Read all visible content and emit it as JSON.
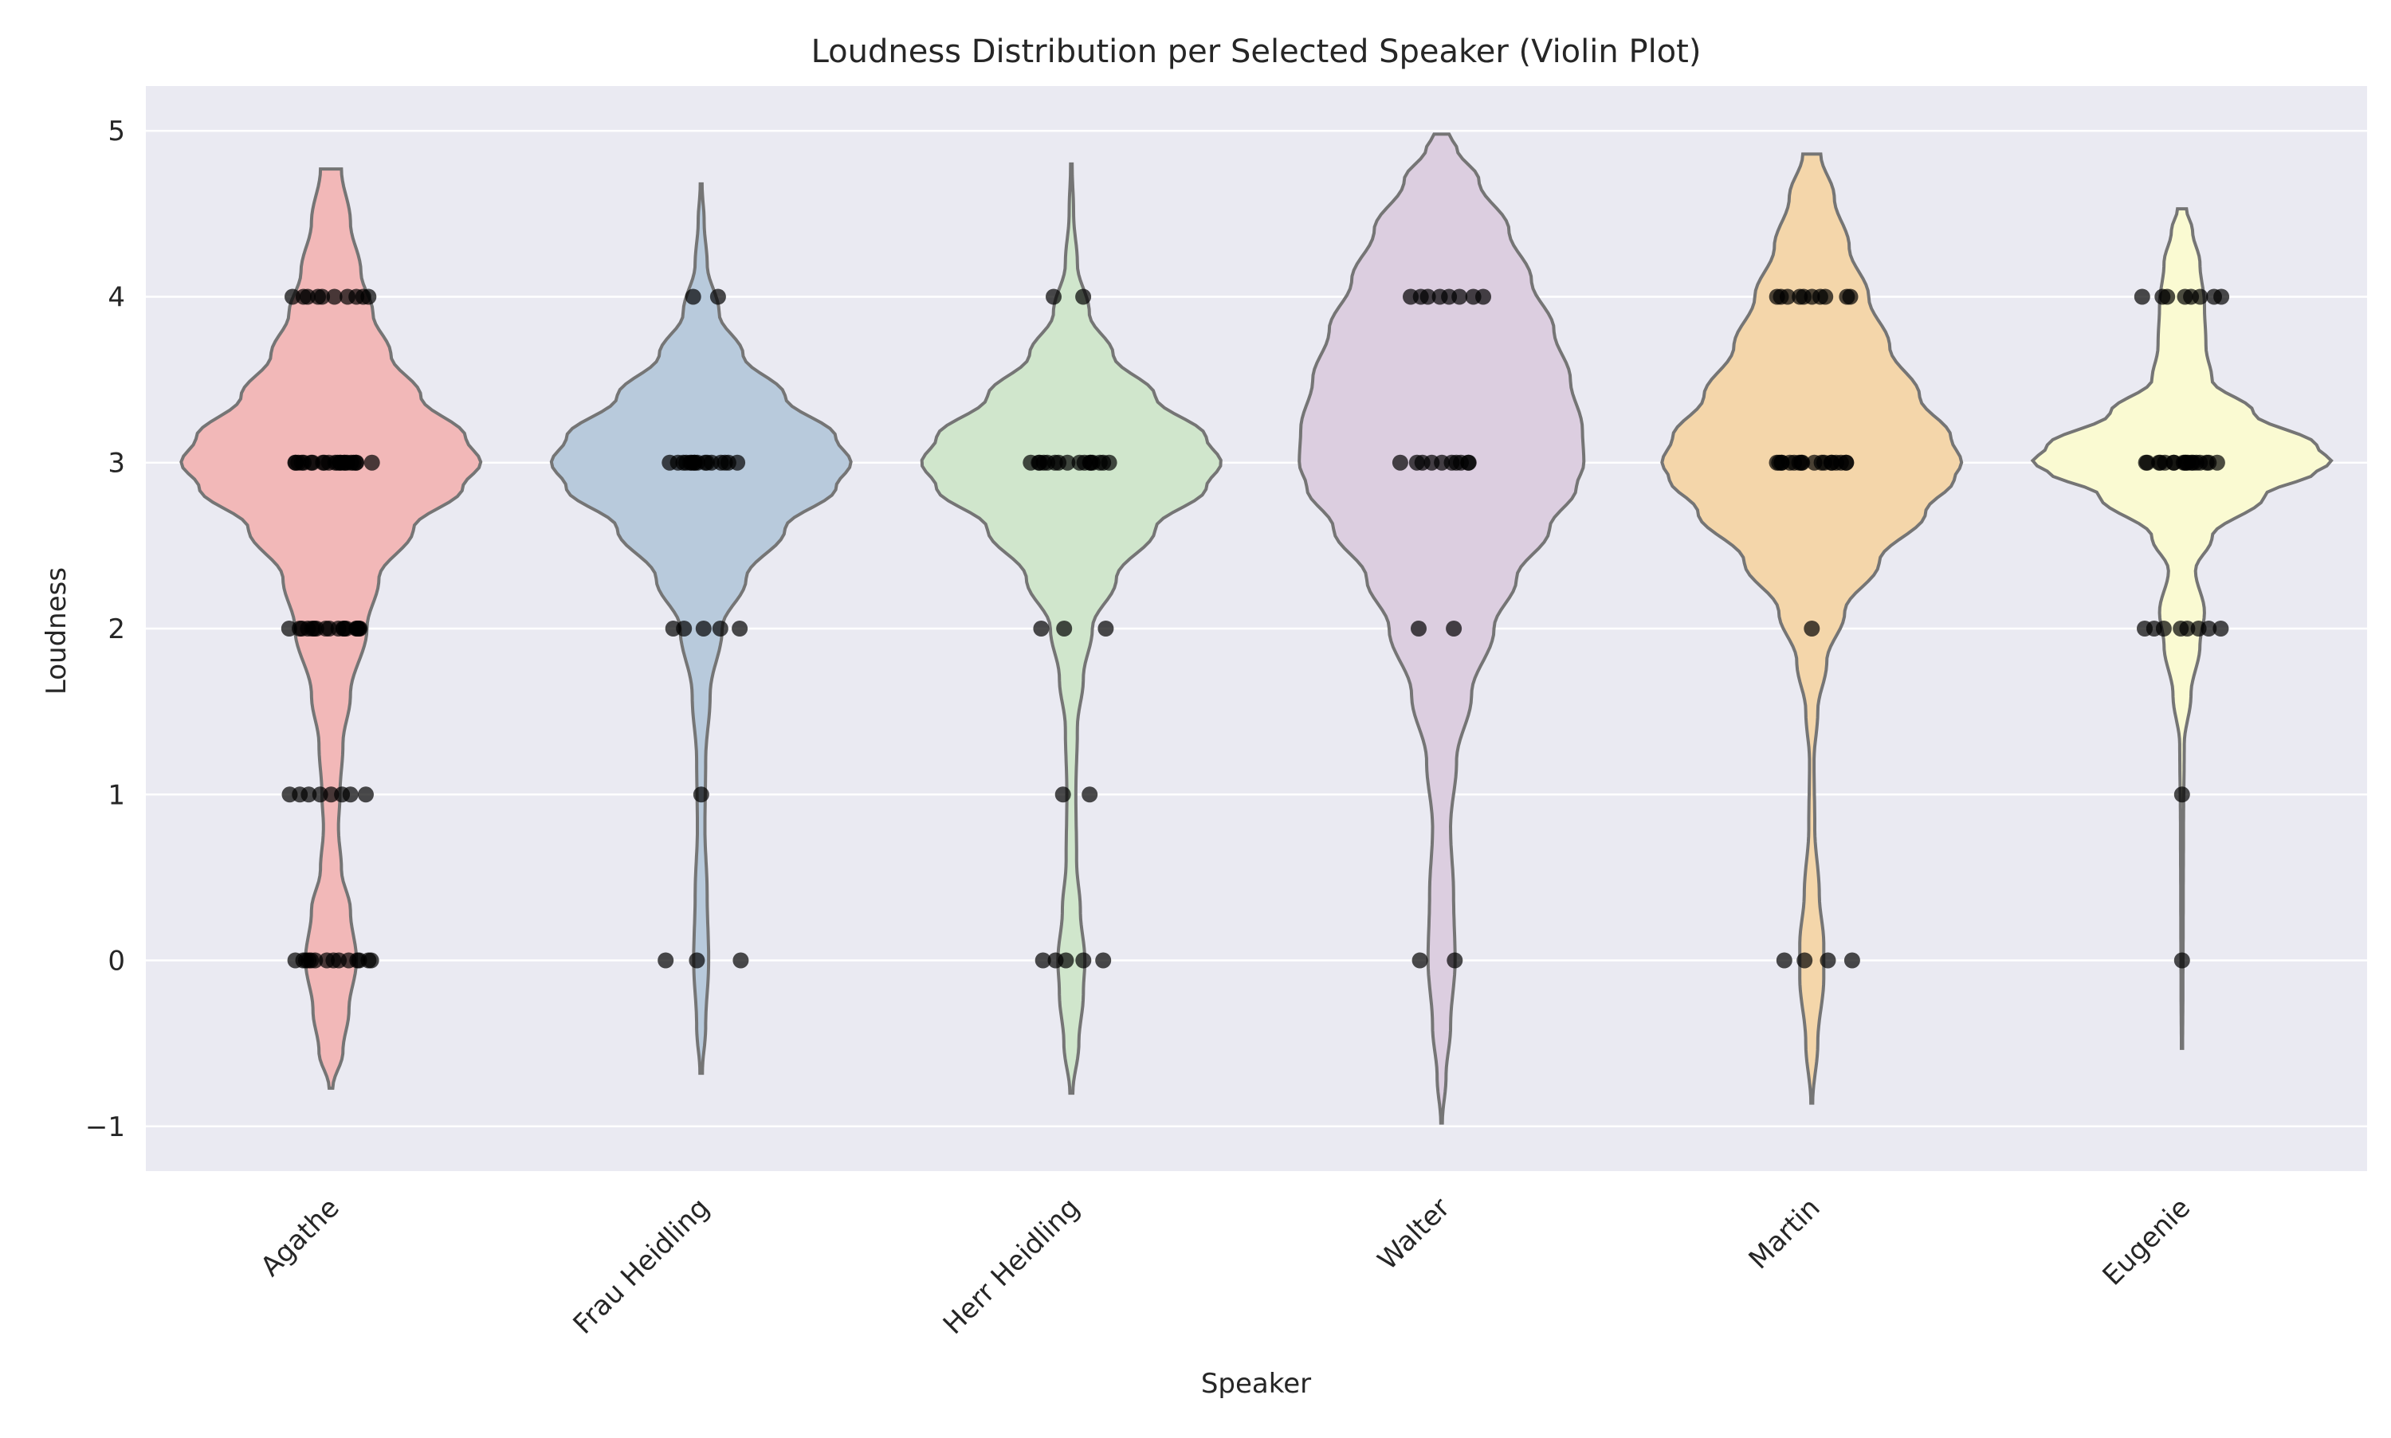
{
  "chart_data": {
    "type": "violin",
    "title": "Loudness Distribution per Selected Speaker (Violin Plot)",
    "xlabel": "Speaker",
    "ylabel": "Loudness",
    "ylim": [
      -1.27,
      5.27
    ],
    "yticks": [
      -1,
      0,
      1,
      2,
      3,
      4,
      5
    ],
    "ytick_labels": [
      "−1",
      "0",
      "1",
      "2",
      "3",
      "4",
      "5"
    ],
    "grid": true,
    "background": "#eaeaf2",
    "categories": [
      "Agathe",
      "Frau Heidling",
      "Herr Heidling",
      "Walter",
      "Martin",
      "Eugenie"
    ],
    "colors": [
      "#f2b8b8",
      "#b8cadc",
      "#d0e6cc",
      "#dccee0",
      "#f4d6aa",
      "#fafad2"
    ],
    "violins": [
      {
        "name": "Agathe",
        "range": [
          -0.77,
          4.77
        ],
        "profile": [
          [
            -0.77,
            0.012
          ],
          [
            -0.55,
            0.08
          ],
          [
            -0.3,
            0.12
          ],
          [
            0,
            0.17
          ],
          [
            0.3,
            0.13
          ],
          [
            0.55,
            0.07
          ],
          [
            0.8,
            0.05
          ],
          [
            1,
            0.06
          ],
          [
            1.3,
            0.08
          ],
          [
            1.6,
            0.13
          ],
          [
            2,
            0.24
          ],
          [
            2.3,
            0.32
          ],
          [
            2.6,
            0.55
          ],
          [
            2.85,
            0.88
          ],
          [
            3,
            1.0
          ],
          [
            3.15,
            0.9
          ],
          [
            3.4,
            0.6
          ],
          [
            3.65,
            0.4
          ],
          [
            3.9,
            0.28
          ],
          [
            4.15,
            0.2
          ],
          [
            4.45,
            0.13
          ],
          [
            4.77,
            0.07
          ]
        ],
        "points": [
          {
            "y": 4,
            "n": 10
          },
          {
            "y": 3,
            "n": 22
          },
          {
            "y": 2,
            "n": 18
          },
          {
            "y": 1,
            "n": 8
          },
          {
            "y": 0,
            "n": 14
          }
        ]
      },
      {
        "name": "Frau Heidling",
        "range": [
          -0.68,
          4.68
        ],
        "profile": [
          [
            -0.68,
            0.008
          ],
          [
            -0.4,
            0.03
          ],
          [
            0,
            0.05
          ],
          [
            0.4,
            0.04
          ],
          [
            0.8,
            0.025
          ],
          [
            1.2,
            0.03
          ],
          [
            1.6,
            0.06
          ],
          [
            2,
            0.14
          ],
          [
            2.3,
            0.3
          ],
          [
            2.6,
            0.56
          ],
          [
            2.85,
            0.9
          ],
          [
            3,
            1.0
          ],
          [
            3.15,
            0.9
          ],
          [
            3.4,
            0.56
          ],
          [
            3.65,
            0.28
          ],
          [
            3.9,
            0.12
          ],
          [
            4.2,
            0.04
          ],
          [
            4.45,
            0.02
          ],
          [
            4.68,
            0.006
          ]
        ],
        "points": [
          {
            "y": 4,
            "n": 2
          },
          {
            "y": 3,
            "n": 16
          },
          {
            "y": 2,
            "n": 5
          },
          {
            "y": 1,
            "n": 1
          },
          {
            "y": 0,
            "n": 3
          }
        ]
      },
      {
        "name": "Herr Heidling",
        "range": [
          -0.8,
          4.8
        ],
        "profile": [
          [
            -0.8,
            0.01
          ],
          [
            -0.5,
            0.05
          ],
          [
            -0.2,
            0.08
          ],
          [
            0,
            0.09
          ],
          [
            0.3,
            0.06
          ],
          [
            0.6,
            0.035
          ],
          [
            1,
            0.03
          ],
          [
            1.4,
            0.04
          ],
          [
            1.7,
            0.08
          ],
          [
            2,
            0.14
          ],
          [
            2.3,
            0.3
          ],
          [
            2.6,
            0.56
          ],
          [
            2.85,
            0.9
          ],
          [
            3,
            1.0
          ],
          [
            3.15,
            0.9
          ],
          [
            3.4,
            0.56
          ],
          [
            3.65,
            0.28
          ],
          [
            3.9,
            0.12
          ],
          [
            4.2,
            0.04
          ],
          [
            4.5,
            0.015
          ],
          [
            4.8,
            0.005
          ]
        ],
        "points": [
          {
            "y": 4,
            "n": 2
          },
          {
            "y": 3,
            "n": 16
          },
          {
            "y": 2,
            "n": 3
          },
          {
            "y": 1,
            "n": 2
          },
          {
            "y": 0,
            "n": 5
          }
        ]
      },
      {
        "name": "Walter",
        "range": [
          -0.98,
          4.98
        ],
        "profile": [
          [
            -0.98,
            0.005
          ],
          [
            -0.7,
            0.03
          ],
          [
            -0.4,
            0.06
          ],
          [
            0,
            0.09
          ],
          [
            0.4,
            0.08
          ],
          [
            0.8,
            0.06
          ],
          [
            1.2,
            0.1
          ],
          [
            1.6,
            0.2
          ],
          [
            2,
            0.35
          ],
          [
            2.3,
            0.5
          ],
          [
            2.6,
            0.72
          ],
          [
            2.85,
            0.9
          ],
          [
            3,
            0.95
          ],
          [
            3.2,
            0.94
          ],
          [
            3.5,
            0.86
          ],
          [
            3.8,
            0.75
          ],
          [
            4.1,
            0.6
          ],
          [
            4.4,
            0.45
          ],
          [
            4.7,
            0.25
          ],
          [
            4.9,
            0.1
          ],
          [
            4.98,
            0.05
          ]
        ],
        "points": [
          {
            "y": 4,
            "n": 8
          },
          {
            "y": 3,
            "n": 10
          },
          {
            "y": 2,
            "n": 2
          },
          {
            "y": 0,
            "n": 2
          }
        ]
      },
      {
        "name": "Martin",
        "range": [
          -0.86,
          4.86
        ],
        "profile": [
          [
            -0.86,
            0.006
          ],
          [
            -0.5,
            0.04
          ],
          [
            -0.1,
            0.08
          ],
          [
            0.1,
            0.08
          ],
          [
            0.4,
            0.05
          ],
          [
            0.8,
            0.02
          ],
          [
            1.2,
            0.015
          ],
          [
            1.5,
            0.04
          ],
          [
            1.8,
            0.1
          ],
          [
            2.1,
            0.22
          ],
          [
            2.4,
            0.45
          ],
          [
            2.7,
            0.76
          ],
          [
            2.9,
            0.95
          ],
          [
            3,
            1.0
          ],
          [
            3.15,
            0.93
          ],
          [
            3.4,
            0.72
          ],
          [
            3.7,
            0.52
          ],
          [
            4,
            0.38
          ],
          [
            4.3,
            0.25
          ],
          [
            4.6,
            0.15
          ],
          [
            4.86,
            0.06
          ]
        ],
        "points": [
          {
            "y": 4,
            "n": 10
          },
          {
            "y": 3,
            "n": 18
          },
          {
            "y": 2,
            "n": 1
          },
          {
            "y": 0,
            "n": 4
          }
        ]
      },
      {
        "name": "Eugenie",
        "range": [
          -0.53,
          4.53
        ],
        "profile": [
          [
            -0.53,
            0.004
          ],
          [
            -0.2,
            0.006
          ],
          [
            0.3,
            0.008
          ],
          [
            0.8,
            0.01
          ],
          [
            1.3,
            0.015
          ],
          [
            1.6,
            0.06
          ],
          [
            1.9,
            0.12
          ],
          [
            2.1,
            0.15
          ],
          [
            2.35,
            0.09
          ],
          [
            2.55,
            0.2
          ],
          [
            2.8,
            0.55
          ],
          [
            2.95,
            0.9
          ],
          [
            3,
            1.0
          ],
          [
            3.1,
            0.9
          ],
          [
            3.3,
            0.48
          ],
          [
            3.5,
            0.2
          ],
          [
            3.7,
            0.16
          ],
          [
            3.95,
            0.15
          ],
          [
            4.2,
            0.12
          ],
          [
            4.4,
            0.07
          ],
          [
            4.53,
            0.03
          ]
        ],
        "points": [
          {
            "y": 4,
            "n": 8
          },
          {
            "y": 3,
            "n": 18
          },
          {
            "y": 2,
            "n": 8
          },
          {
            "y": 1,
            "n": 1
          },
          {
            "y": 0,
            "n": 1
          }
        ]
      }
    ]
  }
}
